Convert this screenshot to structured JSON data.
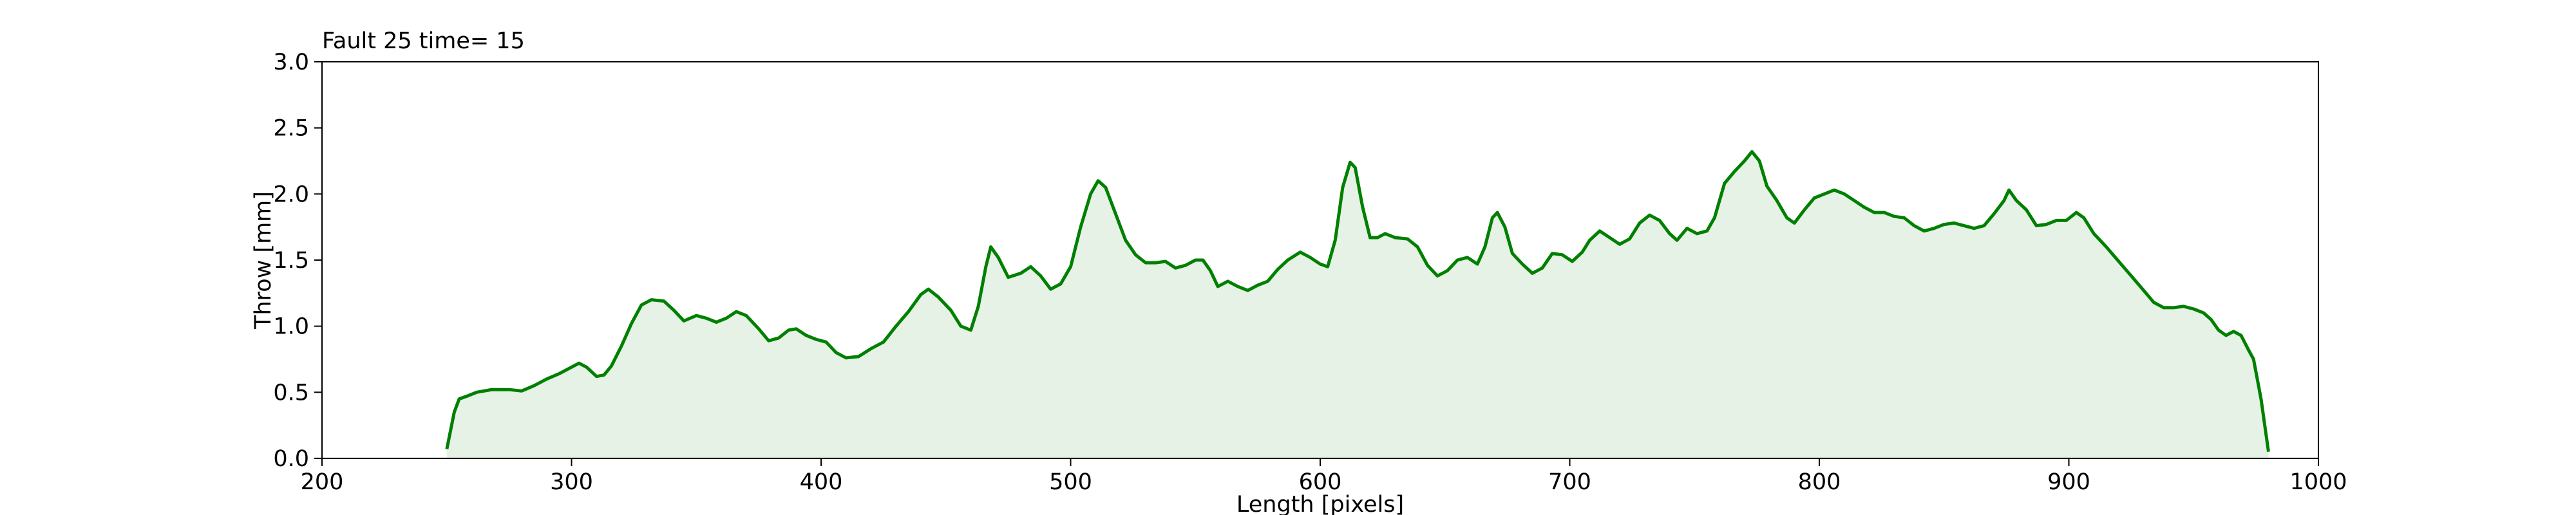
{
  "chart_data": {
    "type": "line",
    "title": "Fault 25 time= 15",
    "x_label": "Length [pixels]",
    "y_label": "Throw [mm]",
    "color": "green",
    "fill": true,
    "x": [
      250,
      253,
      255,
      258,
      262,
      268,
      275,
      280,
      285,
      290,
      295,
      300,
      303,
      306,
      310,
      313,
      316,
      320,
      324,
      328,
      332,
      337,
      341,
      345,
      350,
      354,
      358,
      362,
      366,
      370,
      375,
      379,
      383,
      387,
      390,
      394,
      398,
      402,
      406,
      410,
      415,
      420,
      425,
      430,
      435,
      440,
      443,
      447,
      452,
      456,
      460,
      463,
      466,
      468,
      471,
      475,
      480,
      484,
      488,
      492,
      496,
      500,
      504,
      508,
      511,
      514,
      518,
      522,
      526,
      530,
      534,
      538,
      542,
      546,
      550,
      553,
      556,
      559,
      563,
      567,
      571,
      575,
      579,
      583,
      587,
      592,
      596,
      600,
      603,
      606,
      609,
      612,
      614,
      617,
      620,
      623,
      626,
      630,
      635,
      639,
      643,
      647,
      651,
      655,
      659,
      663,
      666,
      669,
      671,
      674,
      677,
      681,
      685,
      689,
      693,
      697,
      701,
      705,
      708,
      712,
      716,
      720,
      724,
      728,
      732,
      736,
      740,
      743,
      747,
      751,
      755,
      758,
      762,
      766,
      770,
      773,
      776,
      779,
      783,
      787,
      790,
      794,
      798,
      802,
      806,
      810,
      814,
      818,
      822,
      826,
      830,
      834,
      838,
      842,
      846,
      850,
      854,
      858,
      862,
      866,
      870,
      874,
      876,
      879,
      883,
      887,
      891,
      895,
      899,
      903,
      906,
      910,
      915,
      920,
      925,
      930,
      934,
      938,
      942,
      946,
      950,
      954,
      957,
      960,
      963,
      966,
      969,
      972,
      974,
      977,
      980
    ],
    "values": [
      0.07,
      0.35,
      0.45,
      0.47,
      0.5,
      0.52,
      0.52,
      0.51,
      0.55,
      0.6,
      0.64,
      0.69,
      0.72,
      0.69,
      0.62,
      0.63,
      0.7,
      0.85,
      1.02,
      1.16,
      1.2,
      1.19,
      1.12,
      1.04,
      1.08,
      1.06,
      1.03,
      1.06,
      1.11,
      1.08,
      0.98,
      0.89,
      0.91,
      0.97,
      0.98,
      0.93,
      0.9,
      0.88,
      0.8,
      0.76,
      0.77,
      0.83,
      0.88,
      1.0,
      1.11,
      1.24,
      1.28,
      1.22,
      1.12,
      1.0,
      0.97,
      1.15,
      1.45,
      1.6,
      1.52,
      1.37,
      1.4,
      1.45,
      1.38,
      1.28,
      1.32,
      1.45,
      1.75,
      2.0,
      2.1,
      2.05,
      1.85,
      1.65,
      1.54,
      1.48,
      1.48,
      1.49,
      1.44,
      1.46,
      1.5,
      1.5,
      1.42,
      1.3,
      1.34,
      1.3,
      1.27,
      1.31,
      1.34,
      1.43,
      1.5,
      1.56,
      1.52,
      1.47,
      1.45,
      1.65,
      2.05,
      2.24,
      2.2,
      1.9,
      1.67,
      1.67,
      1.7,
      1.67,
      1.66,
      1.6,
      1.46,
      1.38,
      1.42,
      1.5,
      1.52,
      1.47,
      1.6,
      1.82,
      1.86,
      1.75,
      1.55,
      1.47,
      1.4,
      1.44,
      1.55,
      1.54,
      1.49,
      1.56,
      1.65,
      1.72,
      1.67,
      1.62,
      1.66,
      1.78,
      1.84,
      1.8,
      1.7,
      1.65,
      1.74,
      1.7,
      1.72,
      1.82,
      2.08,
      2.17,
      2.25,
      2.32,
      2.25,
      2.06,
      1.95,
      1.82,
      1.78,
      1.88,
      1.97,
      2.0,
      2.03,
      2.0,
      1.95,
      1.9,
      1.86,
      1.86,
      1.83,
      1.82,
      1.76,
      1.72,
      1.74,
      1.77,
      1.78,
      1.76,
      1.74,
      1.76,
      1.85,
      1.95,
      2.03,
      1.95,
      1.88,
      1.76,
      1.77,
      1.8,
      1.8,
      1.86,
      1.82,
      1.7,
      1.6,
      1.49,
      1.38,
      1.27,
      1.18,
      1.14,
      1.14,
      1.15,
      1.13,
      1.1,
      1.05,
      0.97,
      0.93,
      0.96,
      0.93,
      0.82,
      0.75,
      0.45,
      0.05
    ],
    "xlim": [
      200,
      1000
    ],
    "xticks": [
      200,
      300,
      400,
      500,
      600,
      700,
      800,
      900,
      1000
    ],
    "ylim": [
      0,
      3
    ],
    "yticks": [
      {
        "value": 0,
        "label": "0.0"
      },
      {
        "value": 0.5,
        "label": "0.5"
      },
      {
        "value": 1,
        "label": "1.0"
      },
      {
        "value": 1.5,
        "label": "1.5"
      },
      {
        "value": 2,
        "label": "2.0"
      },
      {
        "value": 2.5,
        "label": "2.5"
      },
      {
        "value": 3,
        "label": "3.0"
      }
    ]
  }
}
